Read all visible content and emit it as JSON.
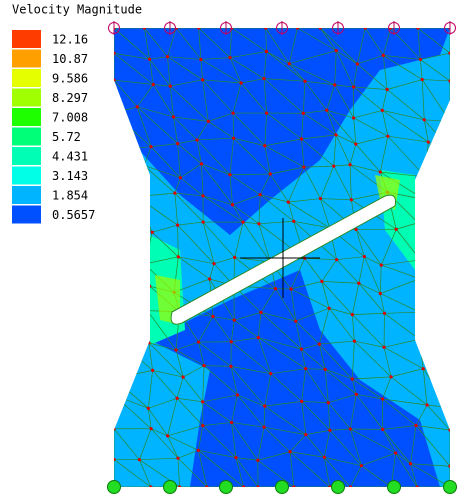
{
  "legend": {
    "title": "Velocity Magnitude",
    "entries": [
      {
        "label": 12.16,
        "color": "#ff3c00"
      },
      {
        "label": 10.87,
        "color": "#ffa000"
      },
      {
        "label": 9.586,
        "color": "#e6ff00"
      },
      {
        "label": 8.297,
        "color": "#a0ff00"
      },
      {
        "label": 7.008,
        "color": "#1eff00"
      },
      {
        "label": 5.72,
        "color": "#00ff78"
      },
      {
        "label": 4.431,
        "color": "#00ffb4"
      },
      {
        "label": 3.143,
        "color": "#00ffe6"
      },
      {
        "label": 1.854,
        "color": "#00b4ff"
      },
      {
        "label": 0.5657,
        "color": "#0050ff"
      }
    ]
  }
}
